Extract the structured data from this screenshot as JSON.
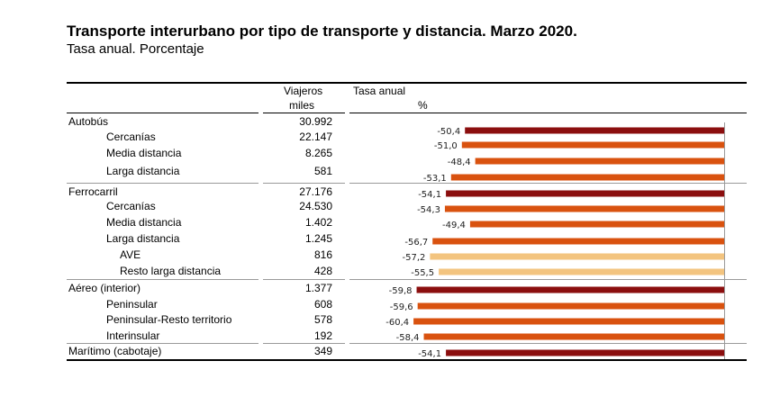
{
  "title": "Transporte interurbano por tipo de transporte y distancia. Marzo 2020.",
  "subtitle": "Tasa anual. Porcentaje",
  "table": {
    "col_viajeros_line1": "Viajeros",
    "col_viajeros_line2": "miles",
    "col_tasa_line1": "Tasa anual",
    "col_tasa_line2": "%"
  },
  "colors": {
    "total": "#8B0E0E",
    "sub": "#D9520F",
    "subsub": "#F3C47F",
    "axis": "#9a9a9a"
  },
  "chart_data": {
    "type": "bar",
    "orientation": "horizontal",
    "title": "Transporte interurbano por tipo de transporte y distancia. Marzo 2020.",
    "subtitle": "Tasa anual. Porcentaje",
    "xlabel": "Tasa anual %",
    "ylabel": "",
    "xlim": [
      -62,
      0
    ],
    "grid": false,
    "legend": "none",
    "rows": [
      {
        "label": "Autobús",
        "level": 0,
        "viajeros_miles": "30.992",
        "tasa": -50.4,
        "tasa_label": "-50,4"
      },
      {
        "label": "Cercanías",
        "level": 1,
        "viajeros_miles": "22.147",
        "tasa": -51.0,
        "tasa_label": "-51,0"
      },
      {
        "label": "Media distancia",
        "level": 1,
        "viajeros_miles": "8.265",
        "tasa": -48.4,
        "tasa_label": "-48,4"
      },
      {
        "label": "Larga distancia",
        "level": 1,
        "viajeros_miles": "581",
        "tasa": -53.1,
        "tasa_label": "-53,1"
      },
      {
        "label": "Ferrocarril",
        "level": 0,
        "viajeros_miles": "27.176",
        "tasa": -54.1,
        "tasa_label": "-54,1"
      },
      {
        "label": "Cercanías",
        "level": 1,
        "viajeros_miles": "24.530",
        "tasa": -54.3,
        "tasa_label": "-54,3"
      },
      {
        "label": "Media distancia",
        "level": 1,
        "viajeros_miles": "1.402",
        "tasa": -49.4,
        "tasa_label": "-49,4"
      },
      {
        "label": "Larga distancia",
        "level": 1,
        "viajeros_miles": "1.245",
        "tasa": -56.7,
        "tasa_label": "-56,7"
      },
      {
        "label": "AVE",
        "level": 2,
        "viajeros_miles": "816",
        "tasa": -57.2,
        "tasa_label": "-57,2"
      },
      {
        "label": "Resto larga distancia",
        "level": 2,
        "viajeros_miles": "428",
        "tasa": -55.5,
        "tasa_label": "-55,5"
      },
      {
        "label": "Aéreo (interior)",
        "level": 0,
        "viajeros_miles": "1.377",
        "tasa": -59.8,
        "tasa_label": "-59,8"
      },
      {
        "label": "Peninsular",
        "level": 1,
        "viajeros_miles": "608",
        "tasa": -59.6,
        "tasa_label": "-59,6"
      },
      {
        "label": "Peninsular-Resto territorio",
        "level": 1,
        "viajeros_miles": "578",
        "tasa": -60.4,
        "tasa_label": "-60,4"
      },
      {
        "label": "Interinsular",
        "level": 1,
        "viajeros_miles": "192",
        "tasa": -58.4,
        "tasa_label": "-58,4"
      },
      {
        "label": "Marítimo (cabotaje)",
        "level": 0,
        "viajeros_miles": "349",
        "tasa": -54.1,
        "tasa_label": "-54,1"
      }
    ]
  }
}
